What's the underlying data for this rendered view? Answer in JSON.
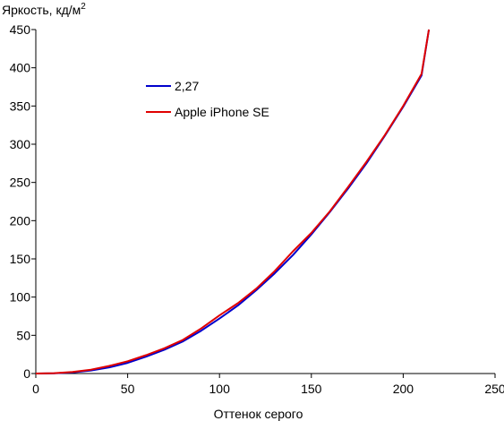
{
  "chart_data": {
    "type": "line",
    "title": "",
    "ylabel": "Яркость, кд/м",
    "ylabel_sup": "2",
    "xlabel": "Оттенок серого",
    "xlim": [
      0,
      250
    ],
    "ylim": [
      0,
      450
    ],
    "xticks": [
      0,
      50,
      100,
      150,
      200,
      250
    ],
    "yticks": [
      0,
      50,
      100,
      150,
      200,
      250,
      300,
      350,
      400,
      450
    ],
    "grid": false,
    "legend_position": "top-left",
    "series": [
      {
        "name": "2,27",
        "color": "#0000cc",
        "x": [
          0,
          10,
          20,
          30,
          40,
          50,
          60,
          70,
          80,
          90,
          100,
          110,
          120,
          130,
          140,
          150,
          160,
          170,
          180,
          190,
          200,
          210,
          214
        ],
        "y": [
          0,
          0.3,
          1.5,
          4,
          8,
          14,
          22,
          31,
          42,
          56,
          72,
          89,
          109,
          131,
          155,
          182,
          211,
          242,
          275,
          311,
          349,
          390,
          450
        ]
      },
      {
        "name": "Apple iPhone SE",
        "color": "#e00000",
        "x": [
          0,
          10,
          20,
          30,
          40,
          50,
          60,
          70,
          80,
          90,
          100,
          110,
          120,
          130,
          140,
          150,
          160,
          170,
          180,
          190,
          200,
          210,
          214
        ],
        "y": [
          0,
          0.5,
          2,
          5,
          10,
          16,
          24,
          33,
          44,
          59,
          76,
          92,
          111,
          134,
          160,
          184,
          212,
          244,
          277,
          312,
          350,
          392,
          450
        ]
      }
    ]
  }
}
